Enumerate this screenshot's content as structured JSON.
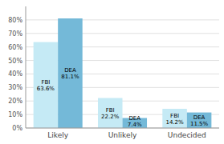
{
  "chart_data": {
    "type": "bar",
    "categories": [
      "Likely",
      "Unlikely",
      "Undecided"
    ],
    "series": [
      {
        "name": "FBI",
        "color": "#c5eaf5",
        "values": [
          63.6,
          22.2,
          14.2
        ],
        "value_labels": [
          "FBI\n63.6%",
          "FBI\n22.2%",
          "FBI\n14.2%"
        ]
      },
      {
        "name": "DEA",
        "color": "#74b9d8",
        "values": [
          81.1,
          7.4,
          11.5
        ],
        "value_labels": [
          "DEA\n81.1%",
          "DEA\n7.4%",
          "DEA\n11.5%"
        ]
      }
    ],
    "ylim": [
      0,
      90
    ],
    "yticks": [
      {
        "value": 0,
        "label": "0%"
      },
      {
        "value": 10,
        "label": "10%"
      },
      {
        "value": 20,
        "label": "20%"
      },
      {
        "value": 30,
        "label": "30%"
      },
      {
        "value": 40,
        "label": "40%"
      },
      {
        "value": 50,
        "label": "50%"
      },
      {
        "value": 60,
        "label": "60%"
      },
      {
        "value": 70,
        "label": "70%"
      },
      {
        "value": 80,
        "label": "80%"
      }
    ],
    "grid": true,
    "data_labels": true
  }
}
